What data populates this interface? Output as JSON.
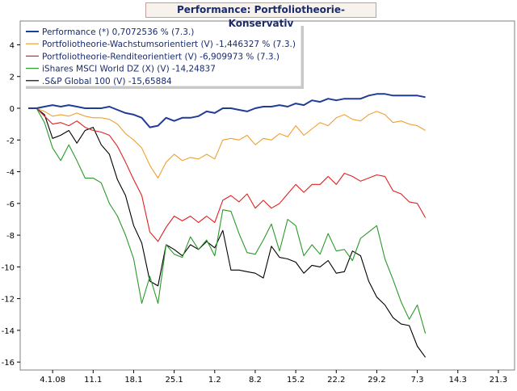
{
  "chart_data": {
    "type": "line",
    "title": "Performance: Portfoliotheorie-Konservativ",
    "x": [
      0,
      1,
      2,
      3,
      4,
      5,
      6,
      7,
      8,
      9,
      10,
      11,
      12,
      13,
      14,
      15,
      16,
      17,
      18,
      19,
      20,
      21,
      22,
      23,
      24,
      25,
      26,
      27,
      28,
      29,
      30,
      31,
      32,
      33,
      34,
      35,
      36,
      37,
      38,
      39,
      40,
      41,
      42,
      43,
      44,
      45,
      46,
      47,
      48,
      49
    ],
    "x_ticks": [
      {
        "label": "4.1.08",
        "pos": 3
      },
      {
        "label": "11.1",
        "pos": 8
      },
      {
        "label": "18.1",
        "pos": 13
      },
      {
        "label": "25.1",
        "pos": 18
      },
      {
        "label": "1.2",
        "pos": 23
      },
      {
        "label": "8.2",
        "pos": 28
      },
      {
        "label": "15.2",
        "pos": 33
      },
      {
        "label": "22.2",
        "pos": 38
      },
      {
        "label": "29.2",
        "pos": 43
      },
      {
        "label": "7.3",
        "pos": 48
      },
      {
        "label": "14.3",
        "pos": 53
      },
      {
        "label": "21.3",
        "pos": 58
      }
    ],
    "xlim": [
      -1,
      60
    ],
    "ylim": [
      -16.5,
      5.5
    ],
    "y_ticks": [
      4,
      2,
      0,
      -2,
      -4,
      -6,
      -8,
      -10,
      -12,
      -14,
      -16
    ],
    "grid": false,
    "legend_position": "top-left",
    "series": [
      {
        "name": "Performance (*) 0,7072536 % (7.3.)",
        "color": "#1f3c96",
        "values": [
          0,
          0,
          0.1,
          0.2,
          0.1,
          0.2,
          0.1,
          0,
          0,
          0,
          0.1,
          -0.1,
          -0.3,
          -0.4,
          -0.6,
          -1.2,
          -1.1,
          -0.6,
          -0.8,
          -0.6,
          -0.6,
          -0.5,
          -0.2,
          -0.3,
          0,
          0,
          -0.1,
          -0.2,
          0,
          0.1,
          0.1,
          0.2,
          0.1,
          0.3,
          0.2,
          0.5,
          0.4,
          0.6,
          0.5,
          0.6,
          0.6,
          0.6,
          0.8,
          0.9,
          0.9,
          0.8,
          0.8,
          0.8,
          0.8,
          0.7
        ]
      },
      {
        "name": "Portfoliotheorie-Wachstumsorientiert (V) -1,446327 % (7.3.)",
        "color": "#f0a030",
        "values": [
          0,
          0,
          -0.2,
          -0.5,
          -0.4,
          -0.5,
          -0.3,
          -0.5,
          -0.6,
          -0.6,
          -0.7,
          -1.0,
          -1.6,
          -2.0,
          -2.5,
          -3.6,
          -4.4,
          -3.4,
          -2.9,
          -3.3,
          -3.1,
          -3.2,
          -2.9,
          -3.2,
          -2.0,
          -1.9,
          -2.0,
          -1.7,
          -2.3,
          -1.9,
          -2.0,
          -1.6,
          -1.8,
          -1.1,
          -1.7,
          -1.3,
          -0.9,
          -1.1,
          -0.6,
          -0.4,
          -0.7,
          -0.8,
          -0.4,
          -0.2,
          -0.4,
          -0.9,
          -0.8,
          -1.0,
          -1.1,
          -1.4
        ]
      },
      {
        "name": "Portfoliotheorie-Renditeorientiert (V) -6,909973 % (7.3.)",
        "color": "#e02020",
        "values": [
          0,
          0,
          -0.5,
          -1.0,
          -0.9,
          -1.1,
          -0.8,
          -1.2,
          -1.4,
          -1.5,
          -1.7,
          -2.4,
          -3.4,
          -4.5,
          -5.5,
          -7.8,
          -8.4,
          -7.5,
          -6.8,
          -7.1,
          -6.8,
          -7.2,
          -6.8,
          -7.2,
          -5.8,
          -5.5,
          -5.9,
          -5.4,
          -6.3,
          -5.8,
          -6.3,
          -6.0,
          -5.4,
          -4.8,
          -5.3,
          -4.8,
          -4.8,
          -4.3,
          -4.8,
          -4.1,
          -4.3,
          -4.6,
          -4.4,
          -4.2,
          -4.3,
          -5.2,
          -5.4,
          -5.9,
          -6.0,
          -6.9
        ]
      },
      {
        "name": "iShares MSCI World DZ (X) (V) -14,24837",
        "color": "#2a9a2a",
        "values": [
          0,
          0,
          -0.9,
          -2.5,
          -3.3,
          -2.3,
          -3.3,
          -4.4,
          -4.4,
          -4.7,
          -6.0,
          -6.8,
          -8.0,
          -9.5,
          -12.3,
          -10.6,
          -12.3,
          -8.6,
          -9.2,
          -9.4,
          -8.1,
          -8.9,
          -8.3,
          -9.3,
          -6.4,
          -6.5,
          -7.9,
          -9.1,
          -9.2,
          -8.3,
          -7.3,
          -9.0,
          -7.0,
          -7.4,
          -9.3,
          -8.6,
          -9.2,
          -7.9,
          -9.0,
          -8.9,
          -9.6,
          -8.2,
          -7.8,
          -7.4,
          -9.5,
          -10.8,
          -12.2,
          -13.3,
          -12.4,
          -14.2
        ]
      },
      {
        "name": ".S&P Global 100 (V) -15,65884",
        "color": "#000000",
        "values": [
          0,
          0,
          -0.4,
          -1.9,
          -1.7,
          -1.4,
          -2.2,
          -1.4,
          -1.2,
          -2.3,
          -2.9,
          -4.5,
          -5.5,
          -7.4,
          -8.5,
          -10.9,
          -11.2,
          -8.6,
          -8.9,
          -9.3,
          -8.6,
          -8.9,
          -8.4,
          -8.8,
          -7.7,
          -10.2,
          -10.2,
          -10.3,
          -10.4,
          -10.7,
          -8.7,
          -9.4,
          -9.5,
          -9.7,
          -10.4,
          -9.9,
          -10.0,
          -9.6,
          -10.4,
          -10.3,
          -9.0,
          -9.3,
          -10.9,
          -11.9,
          -12.4,
          -13.2,
          -13.6,
          -13.7,
          -15.0,
          -15.7
        ]
      }
    ]
  }
}
